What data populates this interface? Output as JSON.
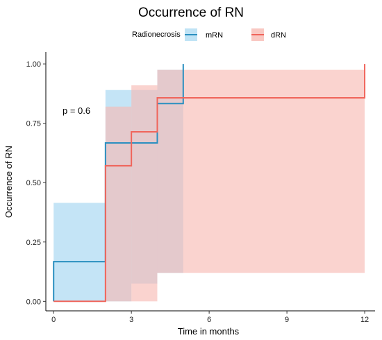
{
  "chart_data": {
    "type": "line",
    "title": "Occurrence of RN",
    "xlabel": "Time in months",
    "ylabel": "Occurrence of RN",
    "xlim": [
      -0.3,
      12.4
    ],
    "ylim": [
      -0.04,
      1.05
    ],
    "x_ticks": [
      0,
      3,
      6,
      9,
      12
    ],
    "y_ticks": [
      0.0,
      0.25,
      0.5,
      0.75,
      1.0
    ],
    "x_tick_labels": [
      "0",
      "3",
      "6",
      "9",
      "12"
    ],
    "y_tick_labels": [
      "0.00",
      "0.25",
      "0.50",
      "0.75",
      "1.00"
    ],
    "legend": {
      "title": "Radionecrosis",
      "position": "top",
      "entries": [
        "mRN",
        "dRN"
      ]
    },
    "annotation": "p = 0.6",
    "grid": false,
    "series": [
      {
        "name": "mRN",
        "color": "#2a8fc0",
        "band_color": "#9fd3f0",
        "steps": [
          [
            0,
            0.0
          ],
          [
            0,
            0.167
          ],
          [
            2,
            0.167
          ],
          [
            2,
            0.667
          ],
          [
            4,
            0.667
          ],
          [
            4,
            0.833
          ],
          [
            5,
            0.833
          ],
          [
            5,
            1.0
          ]
        ],
        "band": [
          {
            "x0": 0,
            "x1": 2,
            "lower": 0.0,
            "upper": 0.415
          },
          {
            "x0": 2,
            "x1": 3,
            "lower": 0.0,
            "upper": 0.89
          },
          {
            "x0": 3,
            "x1": 4,
            "lower": 0.075,
            "upper": 0.89
          },
          {
            "x0": 4,
            "x1": 5,
            "lower": 0.12,
            "upper": 0.975
          }
        ]
      },
      {
        "name": "dRN",
        "color": "#f0645a",
        "band_color": "#f7b8b2",
        "steps": [
          [
            0,
            0.0
          ],
          [
            2,
            0.0
          ],
          [
            2,
            0.571
          ],
          [
            3,
            0.571
          ],
          [
            3,
            0.714
          ],
          [
            4,
            0.714
          ],
          [
            4,
            0.857
          ],
          [
            12,
            0.857
          ],
          [
            12,
            1.0
          ]
        ],
        "band": [
          {
            "x0": 2,
            "x1": 3,
            "lower": 0.0,
            "upper": 0.82
          },
          {
            "x0": 3,
            "x1": 4,
            "lower": 0.0,
            "upper": 0.91
          },
          {
            "x0": 4,
            "x1": 12,
            "lower": 0.12,
            "upper": 0.975
          }
        ]
      }
    ]
  }
}
